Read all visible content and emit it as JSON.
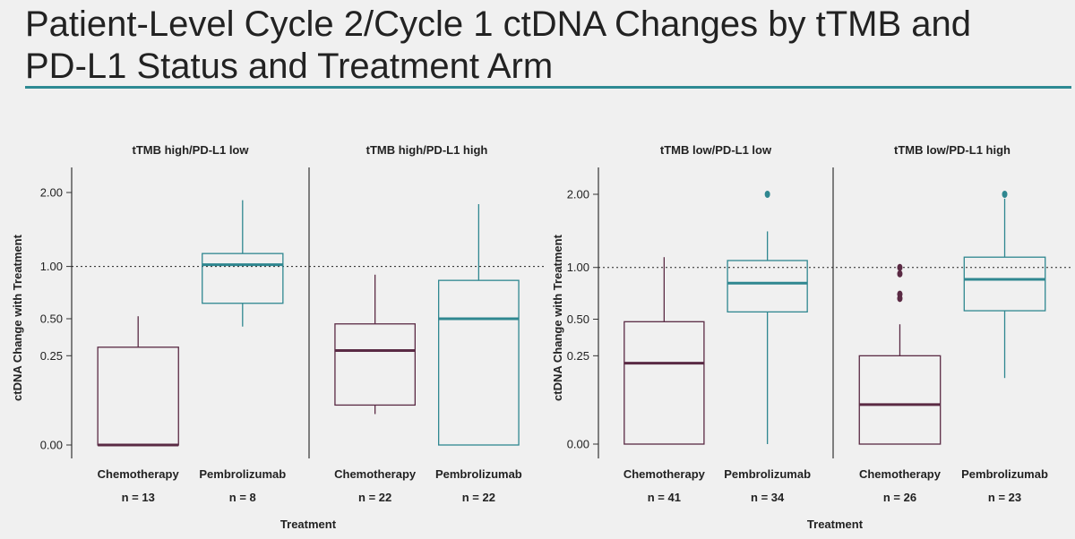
{
  "slide": {
    "title_line1": "Patient-Level Cycle 2/Cycle 1 ctDNA Changes by tTMB and",
    "title_line2": "PD-L1 Status and Treatment Arm"
  },
  "colors": {
    "chemotherapy": "#5a2a44",
    "pembrolizumab": "#2f8790",
    "title_rule": "#2e8a93"
  },
  "chart_data": [
    {
      "type": "boxplot",
      "ylabel": "ctDNA Change with Treatment",
      "xlabel": "Treatment",
      "y_ticks": [
        "0.00",
        "0.25",
        "0.50",
        "1.00",
        "2.00"
      ],
      "y_scale": "square-root",
      "reference_line": 1.0,
      "panels": [
        {
          "title": "tTMB high/PD-L1 low",
          "groups": [
            {
              "name": "Chemotherapy",
              "n_label": "n = 13",
              "whisker_low": 0.0,
              "q1": 0.0,
              "median": 0.0,
              "q3": 0.3,
              "whisker_high": 0.52,
              "outliers": []
            },
            {
              "name": "Pembrolizumab",
              "n_label": "n = 8",
              "whisker_low": 0.44,
              "q1": 0.63,
              "median": 1.02,
              "q3": 1.15,
              "whisker_high": 1.88,
              "outliers": []
            }
          ]
        },
        {
          "title": "tTMB high/PD-L1 high",
          "groups": [
            {
              "name": "Chemotherapy",
              "n_label": "n = 22",
              "whisker_low": 0.03,
              "q1": 0.05,
              "median": 0.28,
              "q3": 0.46,
              "whisker_high": 0.91,
              "outliers": []
            },
            {
              "name": "Pembrolizumab",
              "n_label": "n = 22",
              "whisker_low": 0.0,
              "q1": 0.0,
              "median": 0.5,
              "q3": 0.85,
              "whisker_high": 1.82,
              "outliers": []
            }
          ]
        }
      ]
    },
    {
      "type": "boxplot",
      "ylabel": "ctDNA Change with Treatment",
      "xlabel": "Treatment",
      "y_ticks": [
        "0.00",
        "0.25",
        "0.50",
        "1.00",
        "2.00"
      ],
      "y_scale": "square-root",
      "reference_line": 1.0,
      "panels": [
        {
          "title": "tTMB low/PD-L1 low",
          "groups": [
            {
              "name": "Chemotherapy",
              "n_label": "n = 41",
              "whisker_low": 0.0,
              "q1": 0.0,
              "median": 0.21,
              "q3": 0.48,
              "whisker_high": 1.12,
              "outliers": []
            },
            {
              "name": "Pembrolizumab",
              "n_label": "n = 34",
              "whisker_low": 0.0,
              "q1": 0.56,
              "median": 0.83,
              "q3": 1.08,
              "whisker_high": 1.45,
              "outliers": [
                2.0
              ]
            }
          ]
        },
        {
          "title": "tTMB low/PD-L1 high",
          "groups": [
            {
              "name": "Chemotherapy",
              "n_label": "n = 26",
              "whisker_low": 0.0,
              "q1": 0.0,
              "median": 0.05,
              "q3": 0.25,
              "whisker_high": 0.46,
              "outliers": [
                0.68,
                0.72,
                0.93,
                1.0
              ]
            },
            {
              "name": "Pembrolizumab",
              "n_label": "n = 23",
              "whisker_low": 0.14,
              "q1": 0.57,
              "median": 0.87,
              "q3": 1.12,
              "whisker_high": 1.93,
              "outliers": [
                2.0
              ]
            }
          ]
        }
      ]
    }
  ]
}
